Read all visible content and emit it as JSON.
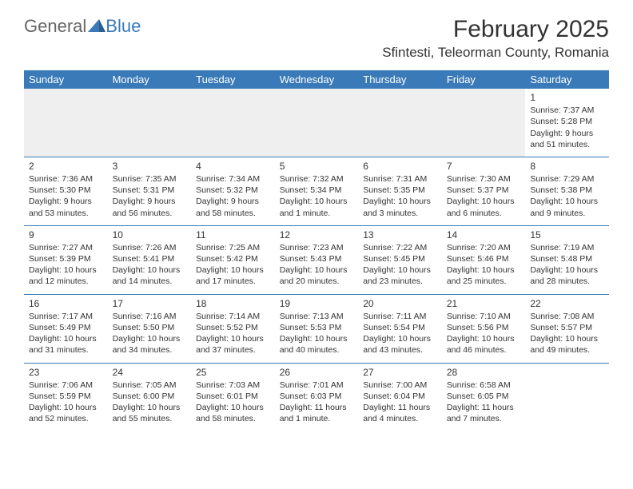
{
  "brand": {
    "part1": "General",
    "part2": "Blue"
  },
  "title": "February 2025",
  "location": "Sfintesti, Teleorman County, Romania",
  "colors": {
    "header_bg": "#3a7ab8",
    "header_text": "#ffffff",
    "text": "#333333",
    "border": "#3a7ab8",
    "empty_bg": "#efefef",
    "page_bg": "#ffffff"
  },
  "weekdays": [
    "Sunday",
    "Monday",
    "Tuesday",
    "Wednesday",
    "Thursday",
    "Friday",
    "Saturday"
  ],
  "weeks": [
    [
      null,
      null,
      null,
      null,
      null,
      null,
      {
        "n": "1",
        "sunrise": "7:37 AM",
        "sunset": "5:28 PM",
        "daylight": "9 hours and 51 minutes."
      }
    ],
    [
      {
        "n": "2",
        "sunrise": "7:36 AM",
        "sunset": "5:30 PM",
        "daylight": "9 hours and 53 minutes."
      },
      {
        "n": "3",
        "sunrise": "7:35 AM",
        "sunset": "5:31 PM",
        "daylight": "9 hours and 56 minutes."
      },
      {
        "n": "4",
        "sunrise": "7:34 AM",
        "sunset": "5:32 PM",
        "daylight": "9 hours and 58 minutes."
      },
      {
        "n": "5",
        "sunrise": "7:32 AM",
        "sunset": "5:34 PM",
        "daylight": "10 hours and 1 minute."
      },
      {
        "n": "6",
        "sunrise": "7:31 AM",
        "sunset": "5:35 PM",
        "daylight": "10 hours and 3 minutes."
      },
      {
        "n": "7",
        "sunrise": "7:30 AM",
        "sunset": "5:37 PM",
        "daylight": "10 hours and 6 minutes."
      },
      {
        "n": "8",
        "sunrise": "7:29 AM",
        "sunset": "5:38 PM",
        "daylight": "10 hours and 9 minutes."
      }
    ],
    [
      {
        "n": "9",
        "sunrise": "7:27 AM",
        "sunset": "5:39 PM",
        "daylight": "10 hours and 12 minutes."
      },
      {
        "n": "10",
        "sunrise": "7:26 AM",
        "sunset": "5:41 PM",
        "daylight": "10 hours and 14 minutes."
      },
      {
        "n": "11",
        "sunrise": "7:25 AM",
        "sunset": "5:42 PM",
        "daylight": "10 hours and 17 minutes."
      },
      {
        "n": "12",
        "sunrise": "7:23 AM",
        "sunset": "5:43 PM",
        "daylight": "10 hours and 20 minutes."
      },
      {
        "n": "13",
        "sunrise": "7:22 AM",
        "sunset": "5:45 PM",
        "daylight": "10 hours and 23 minutes."
      },
      {
        "n": "14",
        "sunrise": "7:20 AM",
        "sunset": "5:46 PM",
        "daylight": "10 hours and 25 minutes."
      },
      {
        "n": "15",
        "sunrise": "7:19 AM",
        "sunset": "5:48 PM",
        "daylight": "10 hours and 28 minutes."
      }
    ],
    [
      {
        "n": "16",
        "sunrise": "7:17 AM",
        "sunset": "5:49 PM",
        "daylight": "10 hours and 31 minutes."
      },
      {
        "n": "17",
        "sunrise": "7:16 AM",
        "sunset": "5:50 PM",
        "daylight": "10 hours and 34 minutes."
      },
      {
        "n": "18",
        "sunrise": "7:14 AM",
        "sunset": "5:52 PM",
        "daylight": "10 hours and 37 minutes."
      },
      {
        "n": "19",
        "sunrise": "7:13 AM",
        "sunset": "5:53 PM",
        "daylight": "10 hours and 40 minutes."
      },
      {
        "n": "20",
        "sunrise": "7:11 AM",
        "sunset": "5:54 PM",
        "daylight": "10 hours and 43 minutes."
      },
      {
        "n": "21",
        "sunrise": "7:10 AM",
        "sunset": "5:56 PM",
        "daylight": "10 hours and 46 minutes."
      },
      {
        "n": "22",
        "sunrise": "7:08 AM",
        "sunset": "5:57 PM",
        "daylight": "10 hours and 49 minutes."
      }
    ],
    [
      {
        "n": "23",
        "sunrise": "7:06 AM",
        "sunset": "5:59 PM",
        "daylight": "10 hours and 52 minutes."
      },
      {
        "n": "24",
        "sunrise": "7:05 AM",
        "sunset": "6:00 PM",
        "daylight": "10 hours and 55 minutes."
      },
      {
        "n": "25",
        "sunrise": "7:03 AM",
        "sunset": "6:01 PM",
        "daylight": "10 hours and 58 minutes."
      },
      {
        "n": "26",
        "sunrise": "7:01 AM",
        "sunset": "6:03 PM",
        "daylight": "11 hours and 1 minute."
      },
      {
        "n": "27",
        "sunrise": "7:00 AM",
        "sunset": "6:04 PM",
        "daylight": "11 hours and 4 minutes."
      },
      {
        "n": "28",
        "sunrise": "6:58 AM",
        "sunset": "6:05 PM",
        "daylight": "11 hours and 7 minutes."
      },
      null
    ]
  ],
  "labels": {
    "sunrise": "Sunrise:",
    "sunset": "Sunset:",
    "daylight": "Daylight:"
  }
}
